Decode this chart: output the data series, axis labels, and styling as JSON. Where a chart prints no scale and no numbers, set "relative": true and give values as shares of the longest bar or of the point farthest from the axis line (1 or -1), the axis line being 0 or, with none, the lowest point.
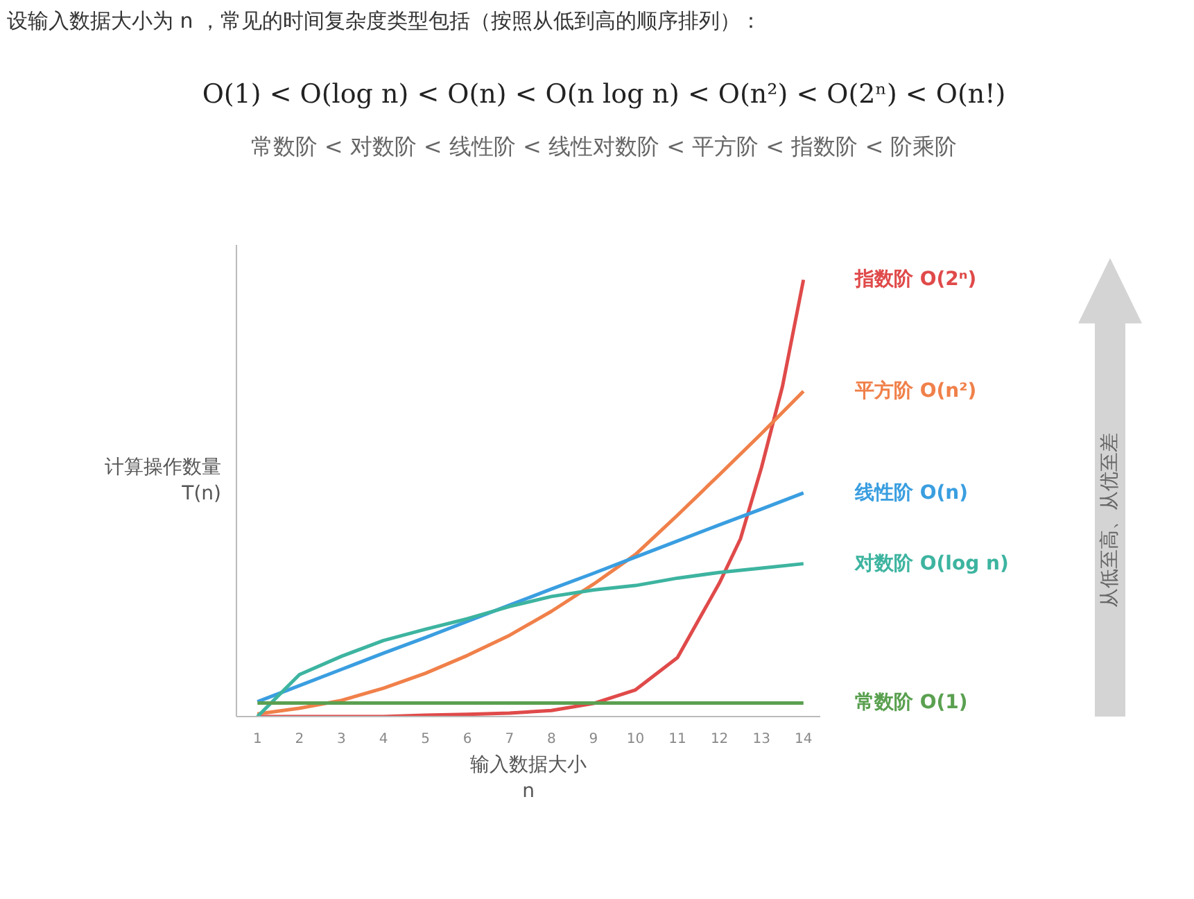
{
  "chart_data": {
    "type": "line",
    "relative": true,
    "title": "设输入数据大小为 n ，常见的时间复杂度类型包括（按照从低到高的顺序排列）：",
    "subtitle": "O(1) < O(log n) < O(n) < O(n log n) < O(n²) < O(2ⁿ) < O(n!)",
    "annotations": [
      "常数阶 < 对数阶 < 线性阶 < 线性对数阶 < 平方阶 < 指数阶 < 阶乘阶",
      "从低至高、从优至差"
    ],
    "xlabel": "输入数据大小\nn",
    "ylabel": "计算操作数量\nT(n)",
    "xlim": [
      0.5,
      14.4
    ],
    "xticks": [
      1,
      2,
      3,
      4,
      5,
      6,
      7,
      8,
      9,
      10,
      11,
      12,
      13,
      14
    ],
    "tick_labels": "x",
    "series": [
      {
        "name": "指数阶 O(2ⁿ)",
        "color": "#e04a4a",
        "x": [
          1,
          2,
          3,
          4,
          5,
          6,
          7,
          8,
          9,
          10,
          11,
          12,
          12.5,
          13,
          13.5,
          14
        ],
        "values": [
          0,
          0,
          0,
          0,
          0.003,
          0.005,
          0.008,
          0.014,
          0.03,
          0.061,
          0.135,
          0.306,
          0.407,
          0.57,
          0.756,
          1
        ]
      },
      {
        "name": "平方阶 O(n²)",
        "color": "#f0804a",
        "x": [
          1,
          2,
          3,
          4,
          5,
          6,
          7,
          8,
          9,
          10,
          11,
          12,
          13,
          14
        ],
        "values": [
          0.006,
          0.019,
          0.037,
          0.065,
          0.099,
          0.14,
          0.186,
          0.241,
          0.303,
          0.371,
          0.461,
          0.554,
          0.648,
          0.745
        ]
      },
      {
        "name": "线性阶 O(n)",
        "color": "#3a9ee0",
        "x": [
          1,
          2,
          3,
          4,
          5,
          6,
          7,
          8,
          9,
          10,
          11,
          12,
          13,
          14
        ],
        "values": [
          0.034,
          0.071,
          0.108,
          0.145,
          0.181,
          0.218,
          0.255,
          0.292,
          0.328,
          0.365,
          0.402,
          0.439,
          0.475,
          0.512
        ]
      },
      {
        "name": "对数阶 O(log n)",
        "color": "#3db4a0",
        "x": [
          1,
          2,
          3,
          4,
          5,
          6,
          7,
          8,
          9,
          10,
          11,
          12,
          13,
          14
        ],
        "values": [
          0,
          0.096,
          0.138,
          0.174,
          0.2,
          0.224,
          0.252,
          0.275,
          0.29,
          0.3,
          0.317,
          0.33,
          0.34,
          0.35
        ]
      },
      {
        "name": "常数阶 O(1)",
        "color": "#5aa050",
        "x": [
          1,
          2,
          3,
          4,
          5,
          6,
          7,
          8,
          9,
          10,
          11,
          12,
          13,
          14
        ],
        "values": [
          0.031,
          0.031,
          0.031,
          0.031,
          0.031,
          0.031,
          0.031,
          0.031,
          0.031,
          0.031,
          0.031,
          0.031,
          0.031,
          0.031
        ]
      }
    ]
  }
}
